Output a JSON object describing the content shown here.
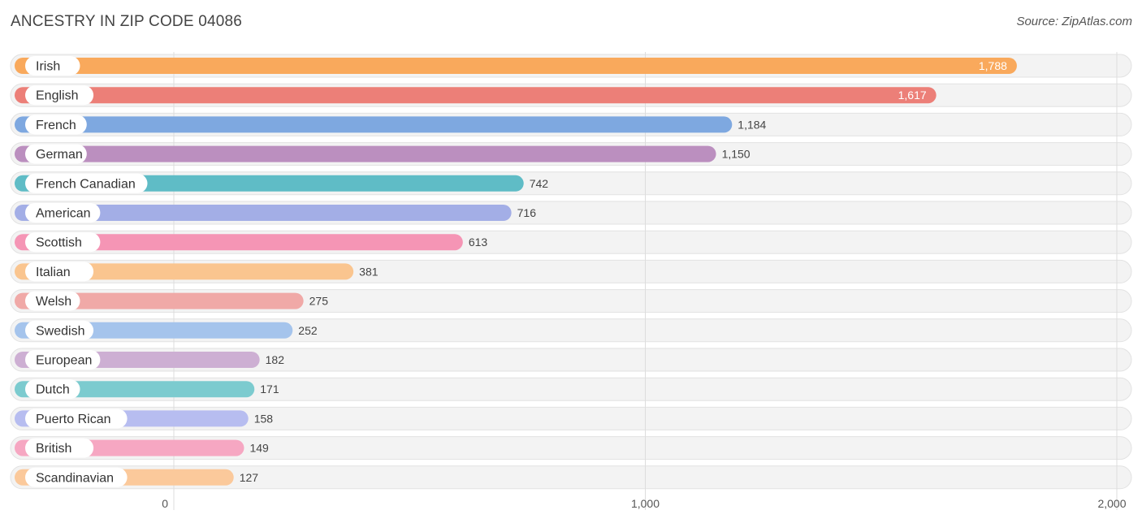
{
  "title": "ANCESTRY IN ZIP CODE 04086",
  "source": "Source: ZipAtlas.com",
  "chart_data": {
    "type": "bar",
    "orientation": "horizontal",
    "title": "ANCESTRY IN ZIP CODE 04086",
    "xlim": [
      0,
      2000
    ],
    "ticks": [
      0,
      1000,
      2000
    ],
    "tick_labels": [
      "0",
      "1,000",
      "2,000"
    ],
    "grid": true,
    "categories": [
      "Irish",
      "English",
      "French",
      "German",
      "French Canadian",
      "American",
      "Scottish",
      "Italian",
      "Welsh",
      "Swedish",
      "European",
      "Dutch",
      "Puerto Rican",
      "British",
      "Scandinavian"
    ],
    "values": [
      1788,
      1617,
      1184,
      1150,
      742,
      716,
      613,
      381,
      275,
      252,
      182,
      171,
      158,
      149,
      127
    ],
    "value_labels": [
      "1,788",
      "1,617",
      "1,184",
      "1,150",
      "742",
      "716",
      "613",
      "381",
      "275",
      "252",
      "182",
      "171",
      "158",
      "149",
      "127"
    ],
    "colors": [
      "#f9a95c",
      "#ec7f78",
      "#7ea8e0",
      "#bb8fbf",
      "#5fbcc6",
      "#a3aee6",
      "#f595b5",
      "#fac58f",
      "#f0a9a7",
      "#a5c4ec",
      "#cdafd3",
      "#7ccbcf",
      "#b7bdf0",
      "#f6a7c2",
      "#fbc99b"
    ]
  }
}
